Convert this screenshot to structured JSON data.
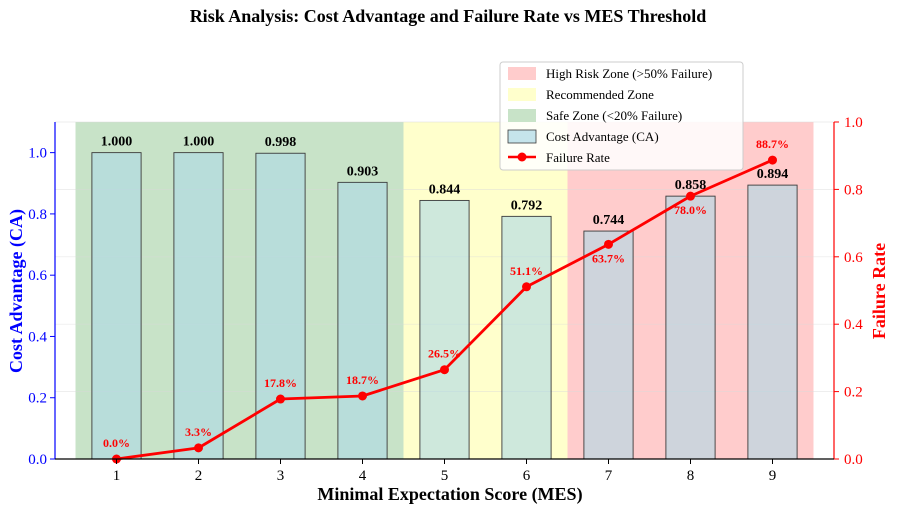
{
  "chart_data": {
    "type": "bar+line",
    "title": "Risk Analysis: Cost Advantage and Failure Rate vs MES Threshold",
    "xlabel": "Minimal Expectation Score (MES)",
    "ylabel_left": "Cost Advantage (CA)",
    "ylabel_right": "Failure Rate",
    "categories": [
      "1",
      "2",
      "3",
      "4",
      "5",
      "6",
      "7",
      "8",
      "9"
    ],
    "x": [
      1,
      2,
      3,
      4,
      5,
      6,
      7,
      8,
      9
    ],
    "xlim": [
      0.25,
      9.75
    ],
    "ylim_left": [
      0.0,
      1.1
    ],
    "ylim_right": [
      0.0,
      1.0
    ],
    "yticks_left": [
      "0.0",
      "0.2",
      "0.4",
      "0.6",
      "0.8",
      "1.0"
    ],
    "yticks_right": [
      "0.0",
      "0.2",
      "0.4",
      "0.6",
      "0.8",
      "1.0"
    ],
    "series": [
      {
        "name": "Cost Advantage (CA)",
        "kind": "bar",
        "axis": "left",
        "values": [
          1.0,
          1.0,
          0.998,
          0.903,
          0.844,
          0.792,
          0.744,
          0.858,
          0.894
        ],
        "labels": [
          "1.000",
          "1.000",
          "0.998",
          "0.903",
          "0.844",
          "0.792",
          "0.744",
          "0.858",
          "0.894"
        ]
      },
      {
        "name": "Failure Rate",
        "kind": "line",
        "axis": "right",
        "values": [
          0.0,
          0.033,
          0.178,
          0.187,
          0.265,
          0.511,
          0.637,
          0.78,
          0.887
        ],
        "labels": [
          "0.0%",
          "3.3%",
          "17.8%",
          "18.7%",
          "26.5%",
          "51.1%",
          "63.7%",
          "78.0%",
          "88.7%"
        ]
      }
    ],
    "zones": [
      {
        "name": "Safe Zone (<20% Failure)",
        "from": 0.5,
        "to": 4.5
      },
      {
        "name": "Recommended Zone",
        "from": 4.5,
        "to": 6.5
      },
      {
        "name": "High Risk Zone (>50% Failure)",
        "from": 6.5,
        "to": 9.5
      }
    ],
    "legend": {
      "placement": "top-right",
      "entries": [
        "High Risk Zone (>50% Failure)",
        "Recommended Zone",
        "Safe Zone (<20% Failure)",
        "Cost Advantage (CA)",
        "Failure Rate"
      ]
    },
    "colors": {
      "safe_zone": "#c8e3c8",
      "recommended_zone": "#ffffcc",
      "high_risk_zone": "#ffcccc",
      "bar_fill": "#add8e6",
      "bar_fill_alpha": 0.6,
      "bar_edge": "#3a3a3a",
      "line": "#ff0000",
      "left_axis": "#0000ff",
      "right_axis": "#ff0000"
    }
  }
}
